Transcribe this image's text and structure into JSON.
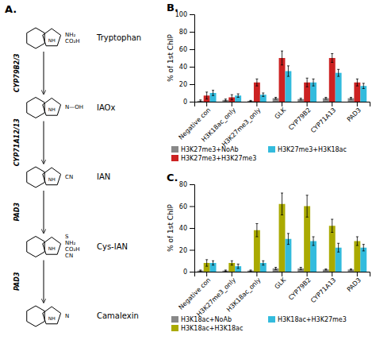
{
  "chart_data": [
    {
      "type": "pathway",
      "title": "A.",
      "categories": [
        "Tryptophan",
        "IAOx",
        "IAN",
        "Cys-IAN",
        "Camalexin"
      ],
      "annotations": [
        "CYP79B2/3",
        "CYP71A12/13",
        "PAD3",
        "PAD3"
      ],
      "group_labels": [
        [
          "NH₂",
          "CO₂H"
        ],
        [
          "N—OH"
        ],
        [
          "CN"
        ],
        [
          "S",
          "NH₂",
          "CO₂H",
          "CN"
        ],
        [
          "N"
        ]
      ],
      "ring_label": "NH"
    },
    {
      "type": "bar",
      "title": "B.",
      "categories": [
        "Negative con",
        "H3K18ac_only",
        "H3K27me3_only",
        "GLK",
        "CYP79B2",
        "CYP71A13",
        "PAD3"
      ],
      "series": [
        {
          "name": "H3K27me3+NoAb",
          "color": "#888888",
          "values": [
            1,
            2,
            1,
            4,
            3,
            4,
            4
          ],
          "errors": [
            1,
            1,
            0.5,
            1,
            1,
            1,
            1
          ]
        },
        {
          "name": "H3K27me3+H3K27me3",
          "color": "#cc2222",
          "values": [
            7,
            5,
            22,
            50,
            22,
            50,
            22
          ],
          "errors": [
            4,
            3,
            4,
            8,
            5,
            5,
            4
          ]
        },
        {
          "name": "H3K27me3+H3K18ac",
          "color": "#33bbdd",
          "values": [
            10,
            7,
            8,
            35,
            22,
            33,
            18
          ],
          "errors": [
            3,
            2,
            2,
            6,
            4,
            4,
            3
          ]
        }
      ],
      "ylabel": "% of 1st ChIP",
      "ylim": [
        0,
        100
      ],
      "yticks": [
        0,
        20,
        40,
        60,
        80,
        100
      ],
      "legend": "bottom",
      "grid": false
    },
    {
      "type": "bar",
      "title": "C.",
      "categories": [
        "Negative con",
        "H3K27me3_only",
        "H3K18ac_only",
        "GLK",
        "CYP79B2",
        "CYP71A13",
        "PAD3"
      ],
      "series": [
        {
          "name": "H3K18ac+NoAb",
          "color": "#888888",
          "values": [
            1,
            1,
            1,
            3,
            3,
            2,
            2
          ],
          "errors": [
            0.5,
            0.5,
            0.5,
            1,
            1,
            0.5,
            0.5
          ]
        },
        {
          "name": "H3K18ac+H3K18ac",
          "color": "#aaaa00",
          "values": [
            8,
            8,
            38,
            62,
            60,
            42,
            28
          ],
          "errors": [
            3,
            2,
            6,
            10,
            10,
            6,
            4
          ]
        },
        {
          "name": "H3K18ac+H3K27me3",
          "color": "#33bbdd",
          "values": [
            8,
            5,
            8,
            30,
            28,
            22,
            22
          ],
          "errors": [
            2,
            2,
            2,
            5,
            4,
            4,
            3
          ]
        }
      ],
      "ylabel": "% of 1st ChIP",
      "ylim": [
        0,
        80
      ],
      "yticks": [
        0,
        20,
        40,
        60,
        80
      ],
      "legend": "bottom",
      "grid": false
    }
  ]
}
